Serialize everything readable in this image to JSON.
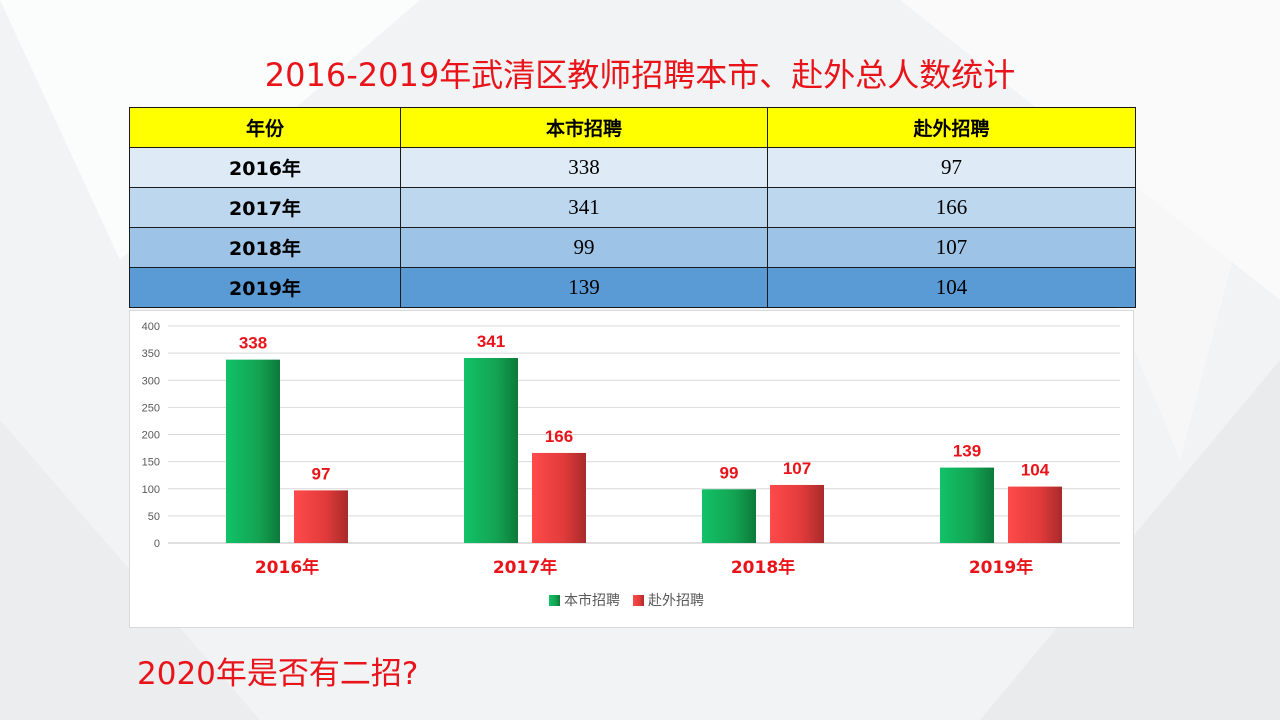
{
  "slide": {
    "title": "2016-2019年武清区教师招聘本市、赴外总人数统计",
    "question": "2020年是否有二招?"
  },
  "table": {
    "headers": [
      "年份",
      "本市招聘",
      "赴外招聘"
    ],
    "rows": [
      [
        "2016年",
        "338",
        "97"
      ],
      [
        "2017年",
        "341",
        "166"
      ],
      [
        "2018年",
        "99",
        "107"
      ],
      [
        "2019年",
        "139",
        "104"
      ]
    ]
  },
  "colors": {
    "title": "#e8141a",
    "header_bg": "#ffff00",
    "row_bgs": [
      "#deeaf6",
      "#bdd7ee",
      "#9dc3e6",
      "#5b9bd5"
    ],
    "series_green": "#1bb35a",
    "series_red": "#e53838",
    "label_red": "#e8141a"
  },
  "chart_data": {
    "type": "bar",
    "categories": [
      "2016年",
      "2017年",
      "2018年",
      "2019年"
    ],
    "series": [
      {
        "name": "本市招聘",
        "values": [
          338,
          341,
          99,
          139
        ]
      },
      {
        "name": "赴外招聘",
        "values": [
          97,
          166,
          107,
          104
        ]
      }
    ],
    "ylim": [
      0,
      400
    ],
    "yticks": [
      0,
      50,
      100,
      150,
      200,
      250,
      300,
      350,
      400
    ],
    "grid": true,
    "legend": "bottom-center",
    "data_labels": true
  }
}
